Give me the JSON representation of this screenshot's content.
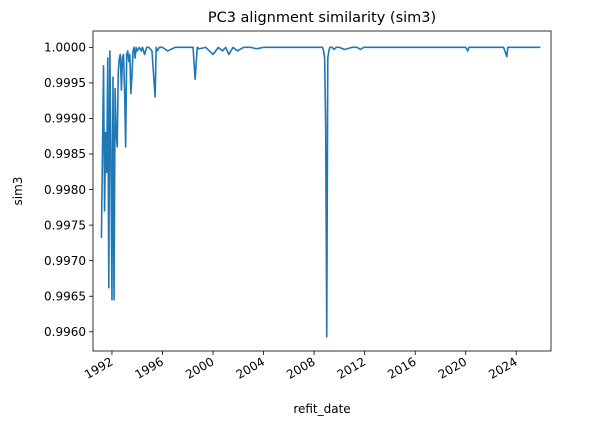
{
  "chart_data": {
    "type": "line",
    "title": "PC3 alignment similarity (sim3)",
    "xlabel": "refit_date",
    "ylabel": "sim3",
    "x_ticks": [
      "1992",
      "1996",
      "2000",
      "2004",
      "2008",
      "2012",
      "2016",
      "2020",
      "2024"
    ],
    "y_ticks": [
      "0.9960",
      "0.9965",
      "0.9970",
      "0.9975",
      "0.9980",
      "0.9985",
      "0.9990",
      "0.9995",
      "1.0000"
    ],
    "xlim": [
      "1990-07",
      "2026-10"
    ],
    "ylim": [
      0.99573,
      1.00023
    ],
    "grid": false,
    "line_color": "#1f77b4",
    "series": [
      {
        "x": [
          "1991-03",
          "1991-05",
          "1991-06",
          "1991-07",
          "1991-08",
          "1991-09",
          "1991-10",
          "1991-11",
          "1991-12",
          "1992-01",
          "1992-02",
          "1992-03",
          "1992-04",
          "1992-05",
          "1992-06",
          "1992-07",
          "1992-08",
          "1992-09",
          "1992-10",
          "1992-11",
          "1992-12",
          "1993-01",
          "1993-02",
          "1993-03",
          "1993-04",
          "1993-05",
          "1993-06",
          "1993-07",
          "1993-08",
          "1993-09",
          "1993-10",
          "1993-11",
          "1993-12",
          "1994-01",
          "1994-03",
          "1994-05",
          "1994-06",
          "1994-08",
          "1994-10",
          "1994-12",
          "1995-03",
          "1995-06",
          "1995-07",
          "1995-08",
          "1995-10",
          "1996-01",
          "1996-06",
          "1997-01",
          "1997-06",
          "1998-01",
          "1998-06",
          "1998-08",
          "1998-10",
          "1998-12",
          "1999-06",
          "2000-01",
          "2000-06",
          "2000-10",
          "2001-01",
          "2001-04",
          "2001-08",
          "2001-12",
          "2002-06",
          "2003-01",
          "2003-06",
          "2004-01",
          "2004-06",
          "2005-01",
          "2005-06",
          "2006-01",
          "2006-06",
          "2007-01",
          "2007-06",
          "2008-01",
          "2008-06",
          "2008-09",
          "2008-10",
          "2008-11",
          "2008-12",
          "2009-01",
          "2009-02",
          "2009-03",
          "2009-04",
          "2009-05",
          "2009-06",
          "2009-08",
          "2009-10",
          "2010-01",
          "2010-06",
          "2011-01",
          "2011-06",
          "2011-09",
          "2011-12",
          "2012-06",
          "2013-01",
          "2014-01",
          "2015-01",
          "2016-01",
          "2017-01",
          "2018-01",
          "2019-01",
          "2020-01",
          "2020-03",
          "2020-04",
          "2020-06",
          "2021-01",
          "2022-01",
          "2023-01",
          "2023-04",
          "2023-05",
          "2023-06",
          "2024-01",
          "2025-01",
          "2025-12"
        ],
        "values": [
          0.99732,
          0.99974,
          0.9977,
          0.9988,
          0.99824,
          0.99985,
          0.99662,
          0.99995,
          0.99855,
          0.99645,
          0.99958,
          0.99645,
          0.99942,
          0.99878,
          0.9986,
          0.99965,
          0.99985,
          0.9999,
          0.9994,
          0.99985,
          0.9999,
          0.9994,
          0.9986,
          0.9999,
          0.99995,
          0.9998,
          0.9999,
          0.99935,
          0.9996,
          0.99995,
          1.0,
          0.99985,
          1.0,
          0.99995,
          1.0,
          0.99995,
          1.0,
          0.9999,
          1.0,
          1.0,
          0.99995,
          0.9993,
          1.0,
          0.99995,
          1.0,
          1.0,
          0.99995,
          1.0,
          1.0,
          1.0,
          1.0,
          0.99955,
          1.0,
          0.99998,
          1.0,
          0.9999,
          1.0,
          0.99995,
          1.0,
          0.9999,
          1.0,
          0.99995,
          1.0,
          1.0,
          0.99998,
          1.0,
          1.0,
          1.0,
          1.0,
          1.0,
          1.0,
          1.0,
          1.0,
          1.0,
          1.0,
          1.0,
          0.99995,
          0.99985,
          0.9989,
          0.99593,
          0.99985,
          0.99995,
          1.0,
          1.0,
          1.0,
          0.99997,
          1.0,
          1.0,
          0.99997,
          1.0,
          1.0,
          0.99997,
          1.0,
          1.0,
          1.0,
          1.0,
          1.0,
          1.0,
          1.0,
          1.0,
          1.0,
          1.0,
          0.99995,
          1.0,
          1.0,
          1.0,
          1.0,
          1.0,
          0.99987,
          1.0,
          1.0,
          1.0,
          1.0,
          1.0
        ]
      }
    ]
  }
}
